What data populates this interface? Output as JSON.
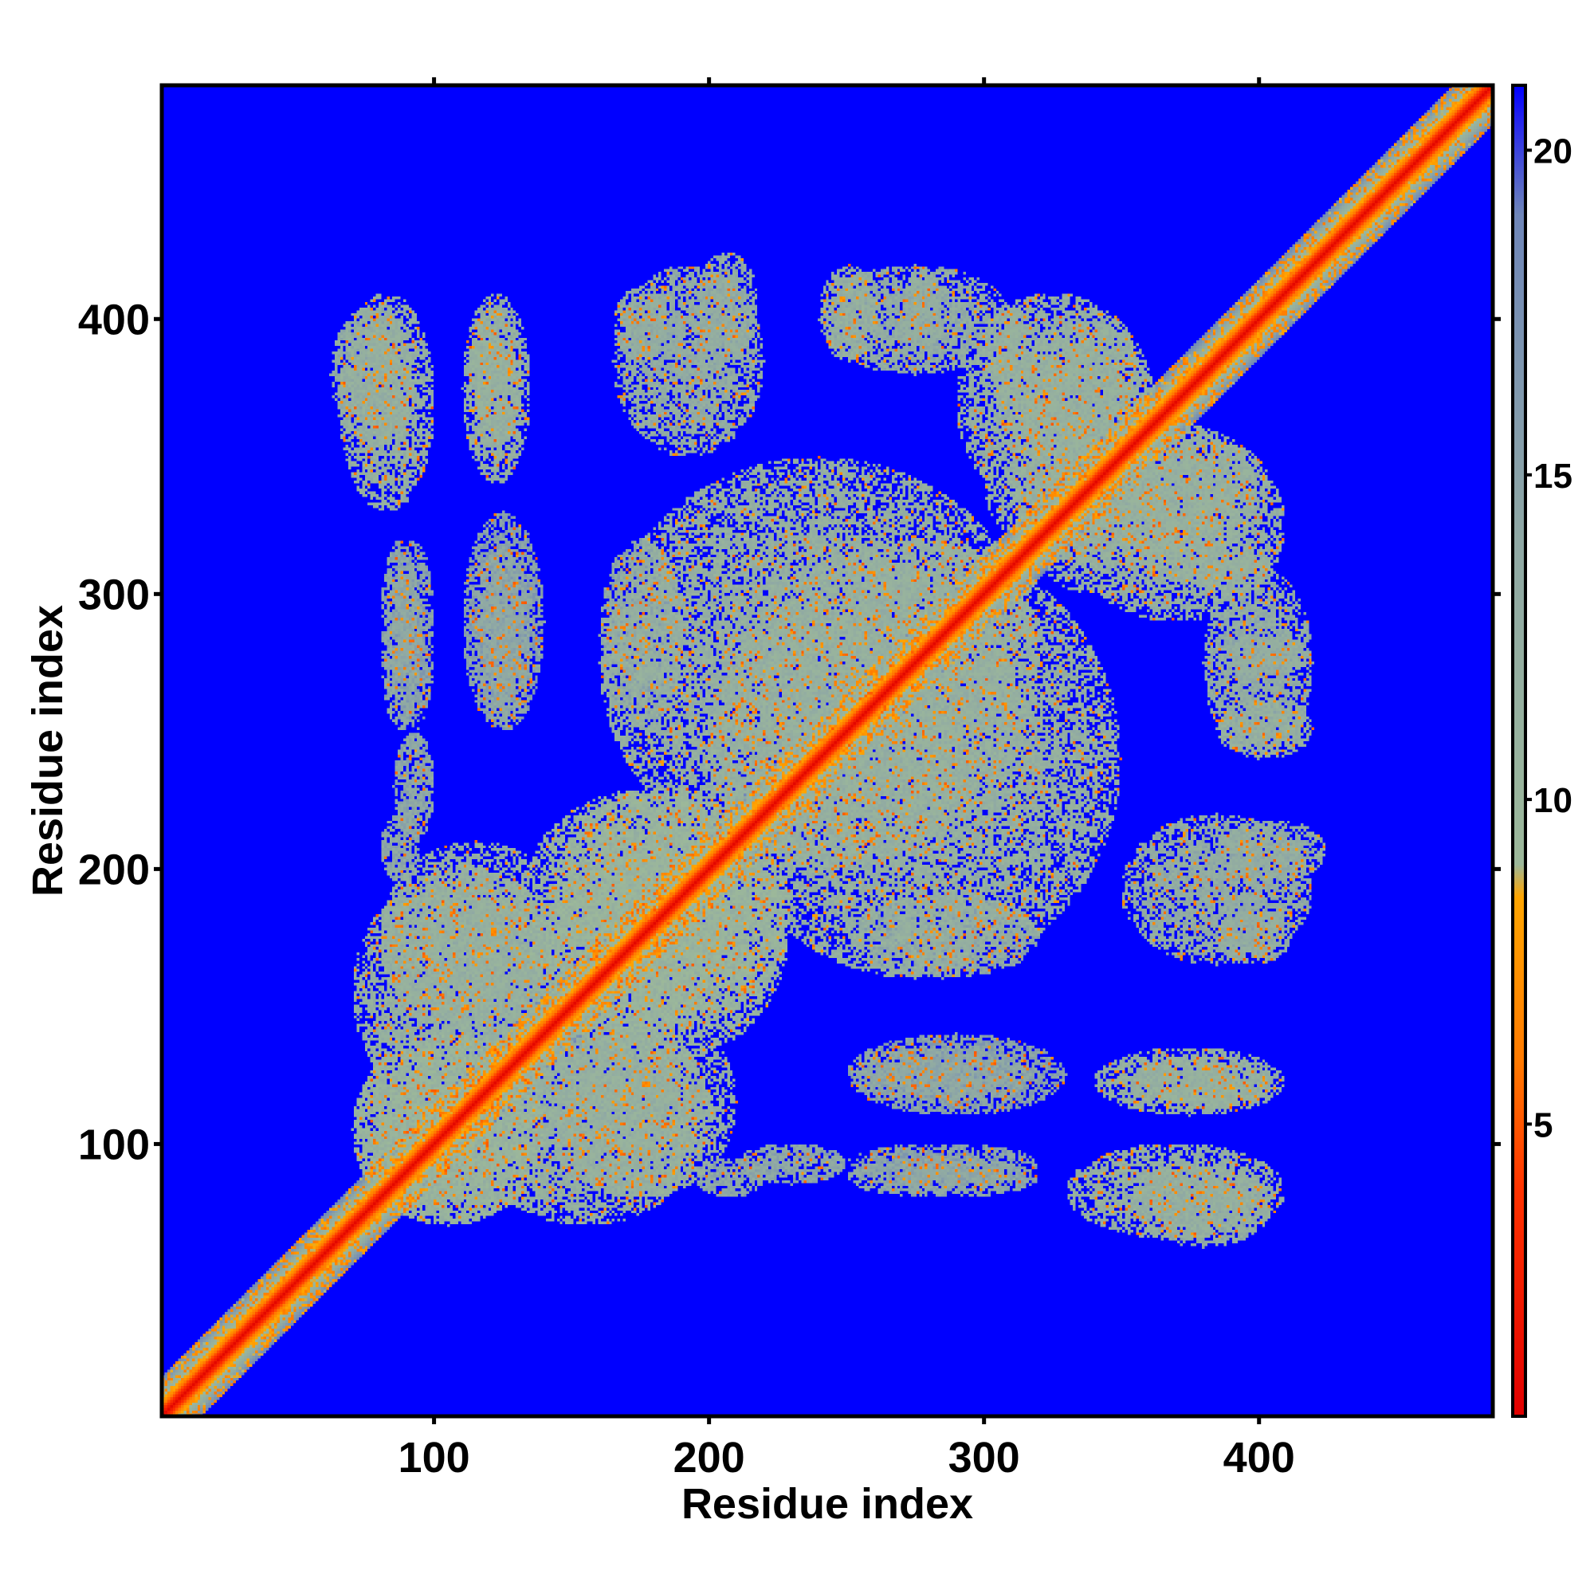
{
  "chart_data": {
    "type": "heatmap",
    "title": "",
    "xlabel": "Residue index",
    "ylabel": "Residue index",
    "n_residues": 485,
    "xlim": [
      1,
      485
    ],
    "ylim": [
      1,
      485
    ],
    "x_ticks": [
      100,
      200,
      300,
      400
    ],
    "y_ticks": [
      100,
      200,
      300,
      400
    ],
    "colorbar": {
      "range": [
        0.5,
        21.0
      ],
      "ticks": [
        5,
        10,
        15,
        20
      ],
      "stops": [
        {
          "value": 0.5,
          "color": "#e00000"
        },
        {
          "value": 4.0,
          "color": "#ff3300"
        },
        {
          "value": 6.0,
          "color": "#ff7a00"
        },
        {
          "value": 8.5,
          "color": "#ffa500"
        },
        {
          "value": 9.0,
          "color": "#9cb89a"
        },
        {
          "value": 14.0,
          "color": "#8fa8a4"
        },
        {
          "value": 19.0,
          "color": "#6f86b8"
        },
        {
          "value": 20.5,
          "color": "#2222ee"
        },
        {
          "value": 21.0,
          "color": "#0000ff"
        }
      ]
    },
    "background_value": 21.0,
    "diagonal": {
      "core_value": 1.0,
      "halfwidth_residues": 14
    },
    "contact_regions": [
      {
        "x": [
          62,
          92
        ],
        "y": [
          355,
          405
        ],
        "value": 13
      },
      {
        "x": [
          112,
          132
        ],
        "y": [
          352,
          405
        ],
        "value": 12
      },
      {
        "x": [
          165,
          185
        ],
        "y": [
          385,
          412
        ],
        "value": 13
      },
      {
        "x": [
          195,
          218
        ],
        "y": [
          385,
          425
        ],
        "value": 13
      },
      {
        "x": [
          240,
          262
        ],
        "y": [
          385,
          420
        ],
        "value": 12
      },
      {
        "x": [
          270,
          285
        ],
        "y": [
          385,
          420
        ],
        "value": 13
      },
      {
        "x": [
          300,
          318
        ],
        "y": [
          370,
          405
        ],
        "value": 12
      },
      {
        "x": [
          310,
          365
        ],
        "y": [
          300,
          405
        ],
        "value": 12
      },
      {
        "x": [
          330,
          410
        ],
        "y": [
          290,
          360
        ],
        "value": 12
      },
      {
        "x": [
          380,
          420
        ],
        "y": [
          240,
          310
        ],
        "value": 13
      },
      {
        "x": [
          80,
          95
        ],
        "y": [
          250,
          320
        ],
        "value": 14
      },
      {
        "x": [
          115,
          135
        ],
        "y": [
          250,
          320
        ],
        "value": 14
      },
      {
        "x": [
          160,
          190
        ],
        "y": [
          250,
          320
        ],
        "value": 14
      },
      {
        "x": [
          200,
          350
        ],
        "y": [
          160,
          320
        ],
        "value": 12
      },
      {
        "x": [
          140,
          230
        ],
        "y": [
          130,
          230
        ],
        "value": 11
      },
      {
        "x": [
          70,
          150
        ],
        "y": [
          110,
          200
        ],
        "value": 12
      },
      {
        "x": [
          70,
          140
        ],
        "y": [
          70,
          140
        ],
        "value": 11
      },
      {
        "x": [
          140,
          210
        ],
        "y": [
          80,
          150
        ],
        "value": 12
      },
      {
        "x": [
          210,
          250
        ],
        "y": [
          85,
          100
        ],
        "value": 14
      },
      {
        "x": [
          250,
          320
        ],
        "y": [
          85,
          100
        ],
        "value": 15
      },
      {
        "x": [
          330,
          410
        ],
        "y": [
          65,
          100
        ],
        "value": 12
      },
      {
        "x": [
          340,
          410
        ],
        "y": [
          110,
          135
        ],
        "value": 12
      },
      {
        "x": [
          250,
          330
        ],
        "y": [
          110,
          140
        ],
        "value": 15
      },
      {
        "x": [
          350,
          420
        ],
        "y": [
          165,
          220
        ],
        "value": 13
      },
      {
        "x": [
          80,
          95
        ],
        "y": [
          195,
          220
        ],
        "value": 14
      }
    ]
  }
}
